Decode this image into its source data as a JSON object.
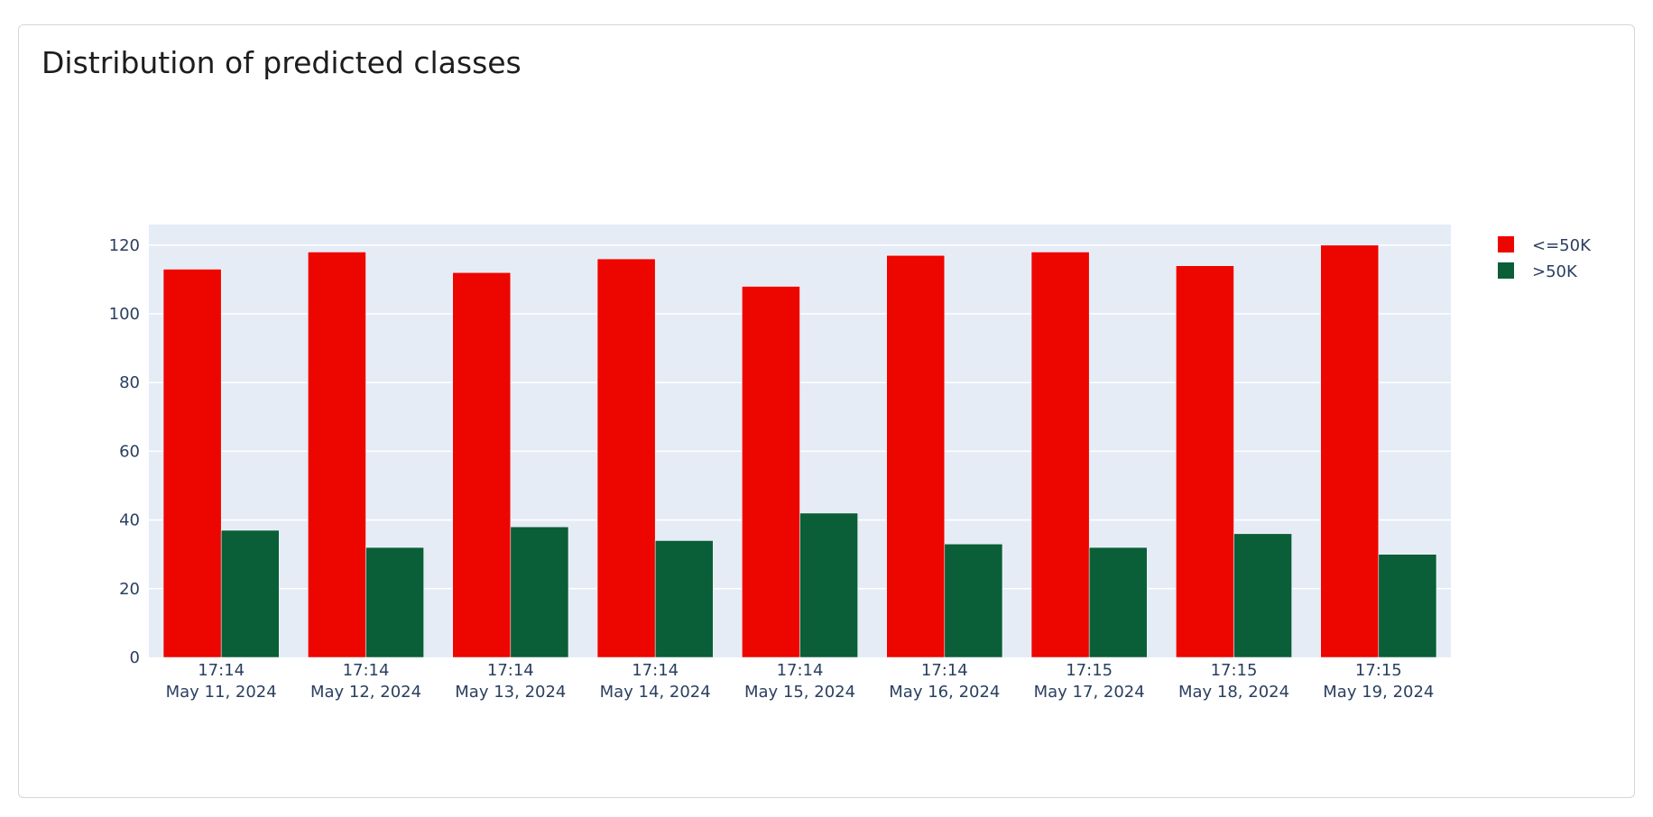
{
  "card": {
    "title": "Distribution of predicted classes"
  },
  "chart_data": {
    "type": "bar",
    "categories": [
      [
        "17:14",
        "May 11, 2024"
      ],
      [
        "17:14",
        "May 12, 2024"
      ],
      [
        "17:14",
        "May 13, 2024"
      ],
      [
        "17:14",
        "May 14, 2024"
      ],
      [
        "17:14",
        "May 15, 2024"
      ],
      [
        "17:14",
        "May 16, 2024"
      ],
      [
        "17:15",
        "May 17, 2024"
      ],
      [
        "17:15",
        "May 18, 2024"
      ],
      [
        "17:15",
        "May 19, 2024"
      ]
    ],
    "series": [
      {
        "name": "<=50K",
        "color": "#ed0500",
        "values": [
          113,
          118,
          112,
          116,
          108,
          117,
          118,
          114,
          120
        ]
      },
      {
        "name": ">50K",
        "color": "#0a5f38",
        "values": [
          37,
          32,
          38,
          34,
          42,
          33,
          32,
          36,
          30
        ]
      }
    ],
    "ylim": [
      0,
      126
    ],
    "yticks": [
      0,
      20,
      40,
      60,
      80,
      100,
      120
    ],
    "xlabel": "",
    "ylabel": "",
    "grid": true,
    "legend_position": "top-right",
    "plot_background": "#e5ecf6",
    "gridline_color": "#ffffff",
    "axis_text_color": "#2a3f5f"
  }
}
